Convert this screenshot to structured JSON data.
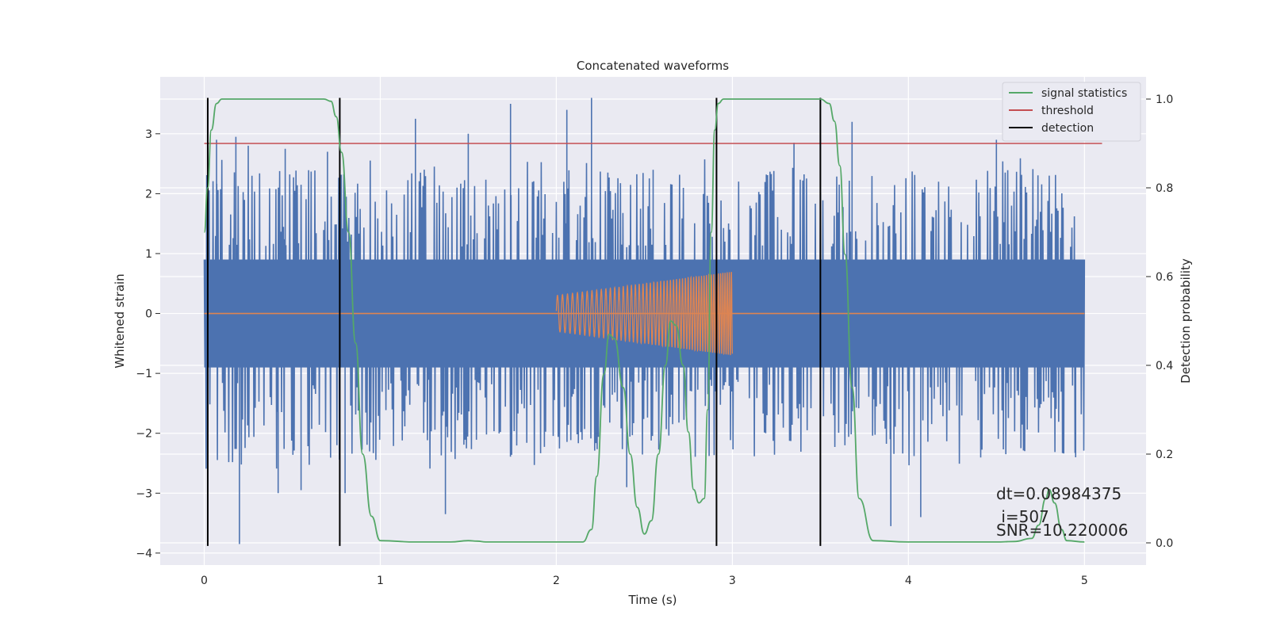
{
  "chart_data": {
    "type": "line",
    "title": "Concatenated waveforms",
    "xlabel": "Time (s)",
    "ylabel": "Whitened strain",
    "y2label": "Detection probability",
    "xlim": [
      -0.25,
      5.35
    ],
    "ylim": [
      -4.2,
      3.95
    ],
    "y2lim": [
      -0.05,
      1.05
    ],
    "xticks": [
      "0",
      "1",
      "2",
      "3",
      "4",
      "5"
    ],
    "yticks": [
      "3",
      "2",
      "1",
      "0",
      "−1",
      "−2",
      "−3",
      "−4"
    ],
    "y2ticks": [
      "1.0",
      "0.8",
      "0.6",
      "0.4",
      "0.2",
      "0.0"
    ],
    "grid": true,
    "legend_position": "top-right",
    "colors": {
      "background": "#eaeaf2",
      "grid": "#ffffff",
      "noise": "#4c72b0",
      "chirp": "#dd8452",
      "signal_statistics": "#55a868",
      "threshold": "#c44e52",
      "detection": "#000000"
    },
    "series": [
      {
        "name": "signal statistics",
        "axis": "right",
        "x": [
          0.0,
          0.02,
          0.04,
          0.07,
          0.1,
          0.15,
          0.6,
          0.68,
          0.72,
          0.75,
          0.78,
          0.82,
          0.86,
          0.9,
          0.95,
          1.0,
          1.2,
          1.4,
          1.5,
          1.55,
          1.6,
          1.8,
          2.0,
          2.15,
          2.2,
          2.23,
          2.27,
          2.3,
          2.33,
          2.38,
          2.42,
          2.46,
          2.5,
          2.54,
          2.58,
          2.62,
          2.65,
          2.68,
          2.72,
          2.75,
          2.78,
          2.81,
          2.84,
          2.86,
          2.88,
          2.9,
          2.92,
          2.95,
          2.98,
          3.0,
          3.1,
          3.5,
          3.55,
          3.58,
          3.61,
          3.64,
          3.68,
          3.72,
          3.8,
          4.0,
          4.5,
          4.6,
          4.7,
          4.74,
          4.78,
          4.8,
          4.83,
          4.87,
          4.9,
          5.0
        ],
        "values": [
          0.7,
          0.8,
          0.93,
          0.99,
          1.0,
          1.0,
          1.0,
          1.0,
          0.995,
          0.96,
          0.88,
          0.7,
          0.45,
          0.2,
          0.06,
          0.005,
          0.002,
          0.002,
          0.005,
          0.004,
          0.002,
          0.002,
          0.002,
          0.002,
          0.03,
          0.15,
          0.38,
          0.47,
          0.46,
          0.35,
          0.2,
          0.08,
          0.02,
          0.05,
          0.2,
          0.4,
          0.5,
          0.49,
          0.4,
          0.25,
          0.12,
          0.09,
          0.1,
          0.3,
          0.7,
          0.93,
          0.99,
          1.0,
          1.0,
          1.0,
          1.0,
          1.0,
          0.99,
          0.95,
          0.85,
          0.65,
          0.35,
          0.1,
          0.005,
          0.002,
          0.002,
          0.003,
          0.01,
          0.04,
          0.1,
          0.12,
          0.09,
          0.03,
          0.005,
          0.002
        ]
      },
      {
        "name": "threshold",
        "axis": "right",
        "x": [
          0.0,
          5.1
        ],
        "values": [
          0.9,
          0.9
        ]
      },
      {
        "name": "detection",
        "axis": "left",
        "x": [
          0.02,
          0.77,
          2.91,
          3.5
        ],
        "y_range": [
          -3.88,
          3.6
        ]
      }
    ],
    "noise_series": {
      "x_range": [
        0.0,
        5.0
      ],
      "envelope": 0.9,
      "spikes": [
        {
          "x": 0.07,
          "y": 2.9
        },
        {
          "x": 0.18,
          "y": 2.95
        },
        {
          "x": 0.2,
          "y": -3.85
        },
        {
          "x": 0.25,
          "y": 2.8
        },
        {
          "x": 0.42,
          "y": -3.0
        },
        {
          "x": 0.46,
          "y": 2.75
        },
        {
          "x": 0.55,
          "y": -2.95
        },
        {
          "x": 0.7,
          "y": 2.7
        },
        {
          "x": 0.8,
          "y": -3.0
        },
        {
          "x": 1.2,
          "y": 3.25
        },
        {
          "x": 1.37,
          "y": -3.35
        },
        {
          "x": 1.5,
          "y": 3.0
        },
        {
          "x": 1.74,
          "y": 3.5
        },
        {
          "x": 2.06,
          "y": 3.4
        },
        {
          "x": 2.2,
          "y": 3.6
        },
        {
          "x": 2.4,
          "y": -2.9
        },
        {
          "x": 2.55,
          "y": 2.4
        },
        {
          "x": 3.35,
          "y": 2.85
        },
        {
          "x": 3.68,
          "y": 3.2
        },
        {
          "x": 3.9,
          "y": -3.55
        },
        {
          "x": 4.07,
          "y": -3.4
        },
        {
          "x": 4.5,
          "y": 2.9
        },
        {
          "x": 4.95,
          "y": -2.4
        }
      ]
    },
    "chirp_series": {
      "x_range": [
        2.0,
        3.0
      ],
      "amplitude_start": 0.3,
      "amplitude_end": 0.7,
      "frequency_start": 35,
      "frequency_end": 85
    },
    "annotations": [
      "dt=0.08984375",
      " i=507",
      "SNR=10.220006"
    ]
  }
}
